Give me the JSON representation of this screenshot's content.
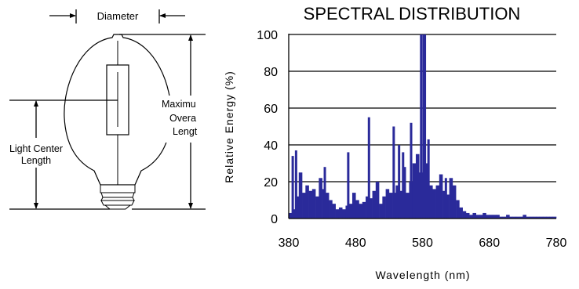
{
  "diagram": {
    "diameter_label": "Diameter",
    "max_length_label_lines": [
      "Maximu",
      "Overa",
      "Lengt"
    ],
    "light_center_label_lines": [
      "Light Center",
      "Length"
    ]
  },
  "chart_data": {
    "type": "bar",
    "title": "SPECTRAL DISTRIBUTION",
    "xlabel": "Wavelength (nm)",
    "ylabel": "Relative Energy (%)",
    "xlim": [
      380,
      780
    ],
    "ylim": [
      0,
      100
    ],
    "xticks": [
      380,
      480,
      580,
      680,
      780
    ],
    "yticks": [
      0,
      20,
      40,
      60,
      80,
      100
    ],
    "grid": "horizontal",
    "color": "#2a2a9a",
    "x": [
      380,
      385,
      390,
      395,
      400,
      405,
      410,
      415,
      420,
      425,
      430,
      435,
      440,
      445,
      450,
      455,
      460,
      465,
      470,
      475,
      480,
      485,
      490,
      495,
      500,
      505,
      510,
      515,
      520,
      525,
      530,
      535,
      540,
      545,
      550,
      555,
      560,
      565,
      570,
      575,
      580,
      585,
      590,
      595,
      600,
      605,
      610,
      615,
      620,
      625,
      630,
      635,
      640,
      645,
      650,
      655,
      660,
      665,
      670,
      675,
      680,
      685,
      690,
      695,
      700,
      705,
      710,
      715,
      720,
      725,
      730,
      735,
      740,
      745,
      750,
      755,
      760,
      765,
      770,
      775
    ],
    "values": [
      3,
      5,
      12,
      25,
      14,
      18,
      15,
      16,
      12,
      22,
      16,
      14,
      10,
      8,
      5,
      6,
      5,
      7,
      8,
      14,
      10,
      8,
      9,
      12,
      11,
      15,
      20,
      8,
      12,
      16,
      14,
      14,
      18,
      15,
      28,
      14,
      20,
      30,
      35,
      25,
      100,
      30,
      18,
      16,
      18,
      24,
      15,
      13,
      22,
      18,
      10,
      6,
      4,
      3,
      2,
      3,
      2,
      2,
      3,
      2,
      2,
      2,
      2,
      1,
      1,
      2,
      1,
      1,
      1,
      1,
      2,
      1,
      1,
      1,
      1,
      1,
      1,
      1,
      1,
      1
    ],
    "spikes": [
      [
        386,
        34
      ],
      [
        391,
        37
      ],
      [
        434,
        28
      ],
      [
        469,
        36
      ],
      [
        500,
        55
      ],
      [
        537,
        50
      ],
      [
        545,
        40
      ],
      [
        551,
        36
      ],
      [
        563,
        52
      ],
      [
        578,
        100
      ],
      [
        589,
        43
      ],
      [
        615,
        22
      ]
    ]
  }
}
